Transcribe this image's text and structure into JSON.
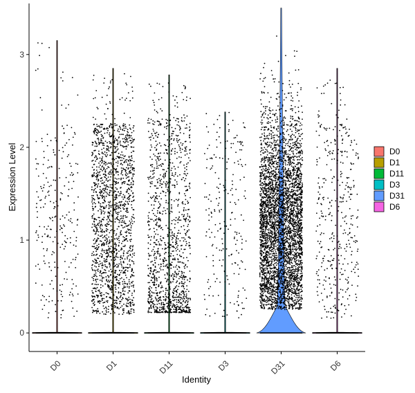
{
  "chart_data": {
    "type": "violin",
    "xlabel": "Identity",
    "ylabel": "Expression Level",
    "ylim": [
      -0.2,
      3.55
    ],
    "yticks": [
      0,
      1,
      2,
      3
    ],
    "categories": [
      "D0",
      "D1",
      "D11",
      "D3",
      "D31",
      "D6"
    ],
    "colors": [
      "#F8766D",
      "#B79F00",
      "#00BA38",
      "#00BFC4",
      "#619CFF",
      "#F564E3"
    ],
    "max_values": [
      3.15,
      2.85,
      2.78,
      2.38,
      3.5,
      2.85
    ],
    "nonzero_counts": [
      260,
      1700,
      1300,
      230,
      4200,
      400
    ],
    "zero_fraction_visible": [
      0.9,
      0.5,
      0.55,
      0.9,
      0.06,
      0.85
    ],
    "legend": {
      "position": "right",
      "entries": [
        "D0",
        "D1",
        "D11",
        "D3",
        "D31",
        "D6"
      ]
    },
    "grid": false
  }
}
